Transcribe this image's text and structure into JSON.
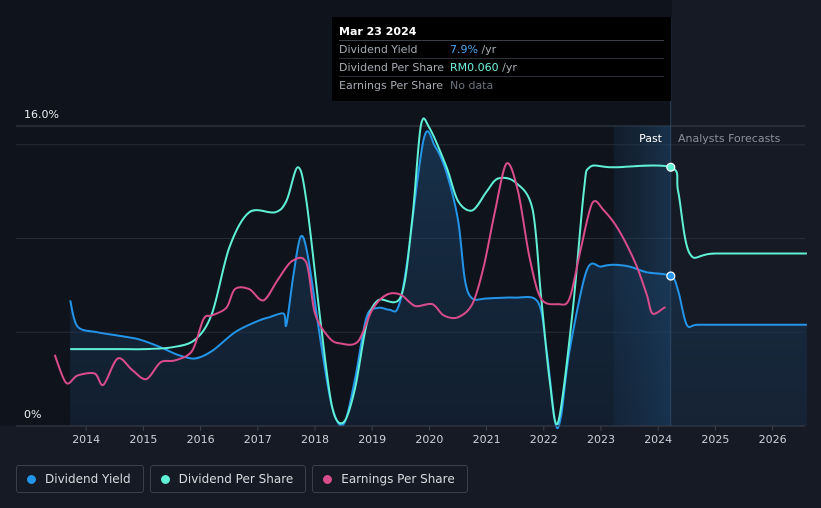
{
  "tooltip": {
    "date": "Mar 23 2024",
    "rows": [
      {
        "label": "Dividend Yield",
        "value": "7.9%",
        "unit": " /yr"
      },
      {
        "label": "Dividend Per Share",
        "value": "RM0.060",
        "unit": " /yr"
      },
      {
        "label": "Earnings Per Share",
        "value": "No data",
        "unit": ""
      }
    ]
  },
  "legend": [
    {
      "label": "Dividend Yield",
      "color": "#2394e8"
    },
    {
      "label": "Dividend Per Share",
      "color": "#5ff0d6"
    },
    {
      "label": "Earnings Per Share",
      "color": "#d94c8c"
    }
  ],
  "chart_data": {
    "type": "line",
    "y_top_label": "16.0%",
    "y_bottom_label": "0%",
    "ylim": [
      0,
      16
    ],
    "xlim": [
      2013.0,
      2026.6
    ],
    "x_ticks": [
      "2014",
      "2015",
      "2016",
      "2017",
      "2018",
      "2019",
      "2020",
      "2021",
      "2022",
      "2023",
      "2024",
      "2025",
      "2026"
    ],
    "past_label": "Past",
    "forecast_label": "Analysts Forecasts",
    "past_end": 2024.22,
    "forecast_band_start": 2023.22,
    "series": [
      {
        "name": "Dividend Yield",
        "color": "#2394e8",
        "points": [
          [
            2013.72,
            6.7
          ],
          [
            2013.85,
            5.3
          ],
          [
            2014.2,
            5.0
          ],
          [
            2014.6,
            4.8
          ],
          [
            2014.95,
            4.6
          ],
          [
            2015.3,
            4.2
          ],
          [
            2015.6,
            3.8
          ],
          [
            2015.9,
            3.6
          ],
          [
            2016.2,
            4.0
          ],
          [
            2016.6,
            5.0
          ],
          [
            2017.0,
            5.6
          ],
          [
            2017.2,
            5.8
          ],
          [
            2017.45,
            6.0
          ],
          [
            2017.5,
            5.4
          ],
          [
            2017.62,
            8.0
          ],
          [
            2017.75,
            10.1
          ],
          [
            2017.88,
            9.0
          ],
          [
            2018.1,
            4.5
          ],
          [
            2018.3,
            1.0
          ],
          [
            2018.5,
            0.1
          ],
          [
            2018.7,
            2.5
          ],
          [
            2018.9,
            5.8
          ],
          [
            2019.1,
            6.3
          ],
          [
            2019.3,
            6.2
          ],
          [
            2019.45,
            6.3
          ],
          [
            2019.6,
            8.5
          ],
          [
            2019.9,
            15.3
          ],
          [
            2020.1,
            14.9
          ],
          [
            2020.3,
            13.5
          ],
          [
            2020.5,
            11.0
          ],
          [
            2020.62,
            7.8
          ],
          [
            2020.75,
            6.8
          ],
          [
            2021.0,
            6.8
          ],
          [
            2021.5,
            6.85
          ],
          [
            2021.9,
            6.6
          ],
          [
            2022.05,
            4.0
          ],
          [
            2022.2,
            0.2
          ],
          [
            2022.3,
            0.5
          ],
          [
            2022.45,
            4.0
          ],
          [
            2022.75,
            8.3
          ],
          [
            2023.0,
            8.5
          ],
          [
            2023.2,
            8.6
          ],
          [
            2023.5,
            8.5
          ],
          [
            2023.8,
            8.2
          ],
          [
            2024.22,
            8.0
          ],
          [
            2024.35,
            7.2
          ],
          [
            2024.5,
            5.4
          ],
          [
            2024.7,
            5.4
          ],
          [
            2025.5,
            5.4
          ],
          [
            2026.6,
            5.4
          ]
        ]
      },
      {
        "name": "Dividend Per Share",
        "color": "#5ff0d6",
        "points": [
          [
            2013.72,
            4.1
          ],
          [
            2014.5,
            4.1
          ],
          [
            2015.0,
            4.1
          ],
          [
            2015.5,
            4.2
          ],
          [
            2015.9,
            4.6
          ],
          [
            2016.2,
            6.0
          ],
          [
            2016.5,
            9.5
          ],
          [
            2016.85,
            11.4
          ],
          [
            2017.3,
            11.4
          ],
          [
            2017.5,
            12.0
          ],
          [
            2017.7,
            13.8
          ],
          [
            2017.85,
            12.0
          ],
          [
            2018.1,
            5.5
          ],
          [
            2018.3,
            1.0
          ],
          [
            2018.5,
            0.2
          ],
          [
            2018.7,
            2.0
          ],
          [
            2018.9,
            5.4
          ],
          [
            2019.1,
            6.7
          ],
          [
            2019.5,
            6.9
          ],
          [
            2019.7,
            11.0
          ],
          [
            2019.85,
            16.0
          ],
          [
            2020.0,
            15.9
          ],
          [
            2020.3,
            13.8
          ],
          [
            2020.5,
            12.0
          ],
          [
            2020.75,
            11.5
          ],
          [
            2021.0,
            12.5
          ],
          [
            2021.2,
            13.2
          ],
          [
            2021.5,
            13.0
          ],
          [
            2021.8,
            11.6
          ],
          [
            2021.95,
            7.0
          ],
          [
            2022.1,
            2.5
          ],
          [
            2022.25,
            0.2
          ],
          [
            2022.5,
            6.0
          ],
          [
            2022.7,
            12.5
          ],
          [
            2022.8,
            13.8
          ],
          [
            2023.2,
            13.8
          ],
          [
            2024.22,
            13.8
          ],
          [
            2024.35,
            12.5
          ],
          [
            2024.55,
            9.2
          ],
          [
            2025.0,
            9.2
          ],
          [
            2026.6,
            9.2
          ]
        ]
      },
      {
        "name": "Earnings Per Share",
        "color": "#d94c8c",
        "points": [
          [
            2013.45,
            3.8
          ],
          [
            2013.65,
            2.3
          ],
          [
            2013.85,
            2.7
          ],
          [
            2014.15,
            2.8
          ],
          [
            2014.3,
            2.2
          ],
          [
            2014.55,
            3.6
          ],
          [
            2014.8,
            3.0
          ],
          [
            2015.05,
            2.5
          ],
          [
            2015.3,
            3.4
          ],
          [
            2015.55,
            3.5
          ],
          [
            2015.85,
            4.0
          ],
          [
            2016.05,
            5.7
          ],
          [
            2016.2,
            5.9
          ],
          [
            2016.45,
            6.3
          ],
          [
            2016.6,
            7.3
          ],
          [
            2016.85,
            7.3
          ],
          [
            2017.1,
            6.7
          ],
          [
            2017.35,
            7.8
          ],
          [
            2017.6,
            8.8
          ],
          [
            2017.85,
            8.7
          ],
          [
            2018.0,
            6.0
          ],
          [
            2018.25,
            4.7
          ],
          [
            2018.45,
            4.4
          ],
          [
            2018.75,
            4.5
          ],
          [
            2019.0,
            6.2
          ],
          [
            2019.25,
            7.0
          ],
          [
            2019.5,
            7.0
          ],
          [
            2019.75,
            6.4
          ],
          [
            2020.05,
            6.5
          ],
          [
            2020.25,
            5.9
          ],
          [
            2020.5,
            5.8
          ],
          [
            2020.75,
            6.5
          ],
          [
            2020.95,
            8.5
          ],
          [
            2021.15,
            11.5
          ],
          [
            2021.35,
            14.0
          ],
          [
            2021.55,
            12.5
          ],
          [
            2021.75,
            9.0
          ],
          [
            2021.95,
            6.8
          ],
          [
            2022.25,
            6.5
          ],
          [
            2022.45,
            6.8
          ],
          [
            2022.65,
            9.5
          ],
          [
            2022.85,
            11.9
          ],
          [
            2023.05,
            11.5
          ],
          [
            2023.3,
            10.5
          ],
          [
            2023.6,
            8.7
          ],
          [
            2023.8,
            7.0
          ],
          [
            2023.9,
            6.0
          ],
          [
            2024.1,
            6.3
          ],
          [
            2024.1,
            6.3
          ]
        ]
      }
    ]
  }
}
